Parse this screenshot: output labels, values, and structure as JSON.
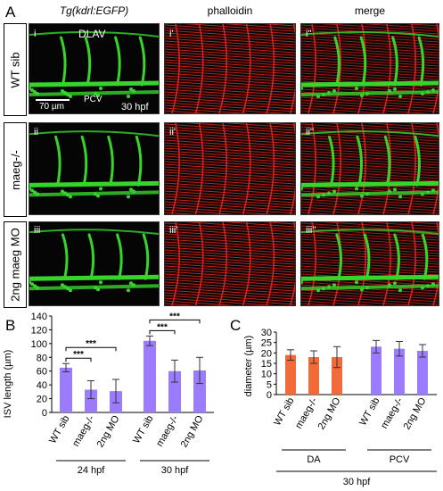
{
  "panel_a": {
    "letter": "A",
    "column_headers": [
      "Tg(kdrl:EGFP)",
      "phalloidin",
      "merge"
    ],
    "row_labels": [
      "WT sib",
      "maeg-/-",
      "2ng maeg MO"
    ],
    "image_labels": [
      [
        "i",
        "i'",
        "i''"
      ],
      [
        "ii",
        "ii'",
        "ii''"
      ],
      [
        "iii",
        "iii'",
        "iii''"
      ]
    ],
    "annotations": {
      "dlav": "DLAV",
      "pcv": "PCV",
      "scale_bar": "70 µm",
      "stage": "30 hpf"
    },
    "colors": {
      "green": "#37d42c",
      "red": "#d8231c"
    }
  },
  "chart_data": [
    {
      "letter": "B",
      "type": "bar",
      "ylabel": "ISV length (µm)",
      "ylim": [
        0,
        140
      ],
      "yticks": [
        0,
        20,
        40,
        60,
        80,
        100,
        120,
        140
      ],
      "groups": [
        {
          "label": "24 hpf",
          "categories": [
            "WT sib",
            "maeg-/-",
            "2ng MO"
          ],
          "values": [
            65,
            33,
            31
          ],
          "errors": [
            6,
            13,
            17
          ]
        },
        {
          "label": "30 hpf",
          "categories": [
            "WT sib",
            "maeg-/-",
            "2ng MO"
          ],
          "values": [
            104,
            60,
            61
          ],
          "errors": [
            7,
            16,
            19
          ]
        }
      ],
      "significance": "***",
      "bar_color": "#9b7cff"
    },
    {
      "letter": "C",
      "type": "bar",
      "ylabel": "diameter (µm)",
      "ylim": [
        0,
        30
      ],
      "yticks": [
        0,
        5,
        10,
        15,
        20,
        25,
        30
      ],
      "groups": [
        {
          "label": "DA",
          "categories": [
            "WT sib",
            "maeg-/-",
            "2ng MO"
          ],
          "values": [
            19,
            18,
            18
          ],
          "errors": [
            2.5,
            3,
            5
          ],
          "color": "#f26a3a"
        },
        {
          "label": "PCV",
          "categories": [
            "WT sib",
            "maeg-/-",
            "2ng MO"
          ],
          "values": [
            23,
            22,
            21
          ],
          "errors": [
            3,
            3.5,
            3
          ],
          "color": "#9b7cff"
        }
      ],
      "footer": "30 hpf"
    }
  ]
}
